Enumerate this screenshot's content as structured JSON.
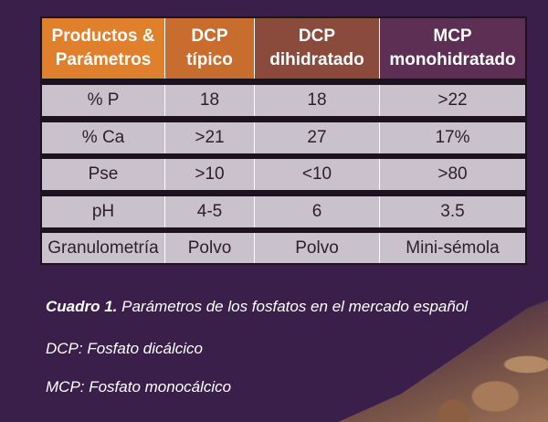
{
  "table": {
    "headers": [
      [
        "Productos &",
        "Parámetros"
      ],
      [
        "DCP",
        "típico"
      ],
      [
        "DCP",
        "dihidratado"
      ],
      [
        "MCP",
        "monohidratado"
      ]
    ],
    "rows": [
      [
        "% P",
        "18",
        "18",
        ">22"
      ],
      [
        "% Ca",
        ">21",
        "27",
        "17%"
      ],
      [
        "Pse",
        ">10",
        "<10",
        ">80"
      ],
      [
        "pH",
        "4-5",
        "6",
        "3.5"
      ],
      [
        "Granulometría",
        "Polvo",
        "Polvo",
        "Mini-sémola"
      ]
    ]
  },
  "caption": {
    "label": "Cuadro 1.",
    "text": " Parámetros de los fosfatos en el mercado español"
  },
  "notes": [
    "DCP: Fosfato dicálcico",
    "MCP: Fosfato monocálcico"
  ]
}
